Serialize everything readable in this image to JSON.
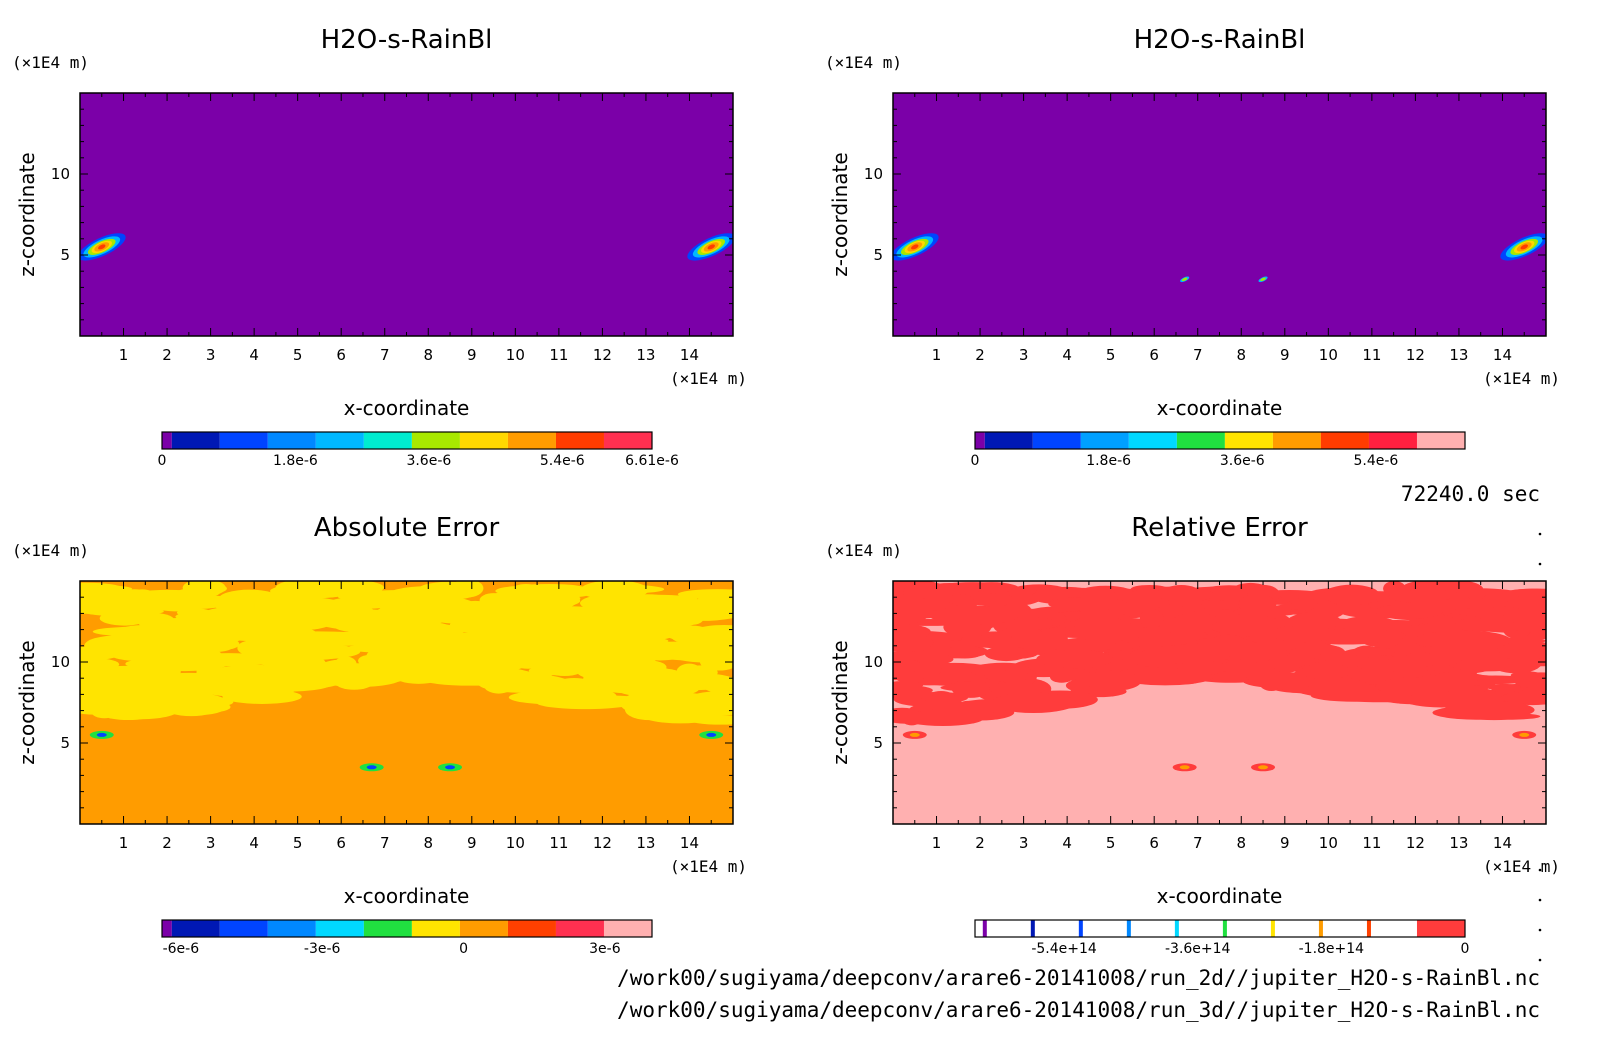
{
  "chart_data": [
    {
      "type": "heatmap",
      "title": "H2O-s-RainBl",
      "xlabel": "x-coordinate",
      "ylabel": "z-coordinate",
      "x_unit": "(×1E4 m)",
      "y_unit": "(×1E4 m)",
      "xlim": [
        0,
        15
      ],
      "ylim": [
        0,
        15
      ],
      "xticks": [
        "1",
        "2",
        "3",
        "4",
        "5",
        "6",
        "7",
        "8",
        "9",
        "10",
        "11",
        "12",
        "13",
        "14"
      ],
      "yticks": [
        "5",
        "10"
      ],
      "background_color": "#7b00a8",
      "colorbar": {
        "colors": [
          "#7b00a8",
          "#0018b4",
          "#0044ff",
          "#0088ff",
          "#00b8ff",
          "#00ecd0",
          "#a8e800",
          "#ffd800",
          "#ff9c00",
          "#ff3c00",
          "#ff3050"
        ],
        "labels": [
          "0",
          "1.8e-6",
          "3.6e-6",
          "5.4e-6",
          "6.61e-6"
        ],
        "label_values": [
          0,
          1.8e-06,
          3.6e-06,
          5.4e-06,
          6.61e-06
        ],
        "min": 0,
        "max": 6.61e-06
      },
      "features": [
        {
          "x": 0.5,
          "z": 5.5,
          "value": 6e-06
        },
        {
          "x": 14.5,
          "z": 5.5,
          "value": 6e-06
        }
      ]
    },
    {
      "type": "heatmap",
      "title": "H2O-s-RainBl",
      "xlabel": "x-coordinate",
      "ylabel": "z-coordinate",
      "x_unit": "(×1E4 m)",
      "y_unit": "(×1E4 m)",
      "xlim": [
        0,
        15
      ],
      "ylim": [
        0,
        15
      ],
      "xticks": [
        "1",
        "2",
        "3",
        "4",
        "5",
        "6",
        "7",
        "8",
        "9",
        "10",
        "11",
        "12",
        "13",
        "14"
      ],
      "yticks": [
        "5",
        "10"
      ],
      "background_color": "#7b00a8",
      "colorbar": {
        "colors": [
          "#7b00a8",
          "#0018b4",
          "#0044ff",
          "#00a0ff",
          "#00d8ff",
          "#20e040",
          "#ffe400",
          "#ff9c00",
          "#ff3c00",
          "#ff2040",
          "#ffb0b0"
        ],
        "labels": [
          "0",
          "1.8e-6",
          "3.6e-6",
          "5.4e-6"
        ],
        "label_values": [
          0,
          1.8e-06,
          3.6e-06,
          5.4e-06
        ],
        "min": 0,
        "max": 6.6e-06
      },
      "features": [
        {
          "x": 0.5,
          "z": 5.5,
          "value": 6e-06
        },
        {
          "x": 14.5,
          "z": 5.5,
          "value": 6e-06
        },
        {
          "x": 6.7,
          "z": 3.5,
          "value": 3e-06
        },
        {
          "x": 8.5,
          "z": 3.5,
          "value": 3e-06
        }
      ]
    },
    {
      "type": "heatmap",
      "title": "Absolute Error",
      "xlabel": "x-coordinate",
      "ylabel": "z-coordinate",
      "x_unit": "(×1E4 m)",
      "y_unit": "(×1E4 m)",
      "xlim": [
        0,
        15
      ],
      "ylim": [
        0,
        15
      ],
      "xticks": [
        "1",
        "2",
        "3",
        "4",
        "5",
        "6",
        "7",
        "8",
        "9",
        "10",
        "11",
        "12",
        "13",
        "14"
      ],
      "yticks": [
        "5",
        "10"
      ],
      "background_color": "#ff9c00",
      "pattern_color": "#ffe400",
      "colorbar": {
        "colors": [
          "#7b00a8",
          "#0018b4",
          "#0044ff",
          "#0088ff",
          "#00d8ff",
          "#20e040",
          "#ffe400",
          "#ff9c00",
          "#ff4000",
          "#ff3050",
          "#ffb0b0"
        ],
        "labels": [
          "-6e-6",
          "-3e-6",
          "0",
          "3e-6"
        ],
        "label_values": [
          -6e-06,
          -3e-06,
          0,
          3e-06
        ],
        "min": -6.4e-06,
        "max": 4e-06
      }
    },
    {
      "type": "heatmap",
      "title": "Relative Error",
      "xlabel": "x-coordinate",
      "ylabel": "z-coordinate",
      "x_unit": "(×1E4 m)",
      "y_unit": "(×1E4 m)",
      "xlim": [
        0,
        15
      ],
      "ylim": [
        0,
        15
      ],
      "xticks": [
        "1",
        "2",
        "3",
        "4",
        "5",
        "6",
        "7",
        "8",
        "9",
        "10",
        "11",
        "12",
        "13",
        "14"
      ],
      "yticks": [
        "5",
        "10"
      ],
      "background_color": "#ffb0b0",
      "pattern_color": "#ff3c3c",
      "colorbar": {
        "colors": [
          "#ffffff",
          "#ffffff",
          "#ffffff",
          "#ffffff",
          "#ffffff",
          "#ffffff",
          "#ffffff",
          "#ffffff",
          "#ffffff",
          "#ffffff",
          "#ff3c3c"
        ],
        "stripe_colors": [
          "#7b00a8",
          "#0018b4",
          "#0044ff",
          "#0088ff",
          "#00d8ff",
          "#20e040",
          "#ffe400",
          "#ff9c00",
          "#ff4000"
        ],
        "labels": [
          "-5.4e+14",
          "-3.6e+14",
          "-1.8e+14",
          "0"
        ],
        "label_values": [
          -540000000000000.0,
          -360000000000000.0,
          -180000000000000.0,
          0
        ],
        "min": -660000000000000.0,
        "max": 0
      }
    }
  ],
  "time_label": "72240.0 sec",
  "file_paths": [
    "/work00/sugiyama/deepconv/arare6-20141008/run_2d//jupiter_H2O-s-RainBl.nc",
    "/work00/sugiyama/deepconv/arare6-20141008/run_3d//jupiter_H2O-s-RainBl.nc"
  ]
}
